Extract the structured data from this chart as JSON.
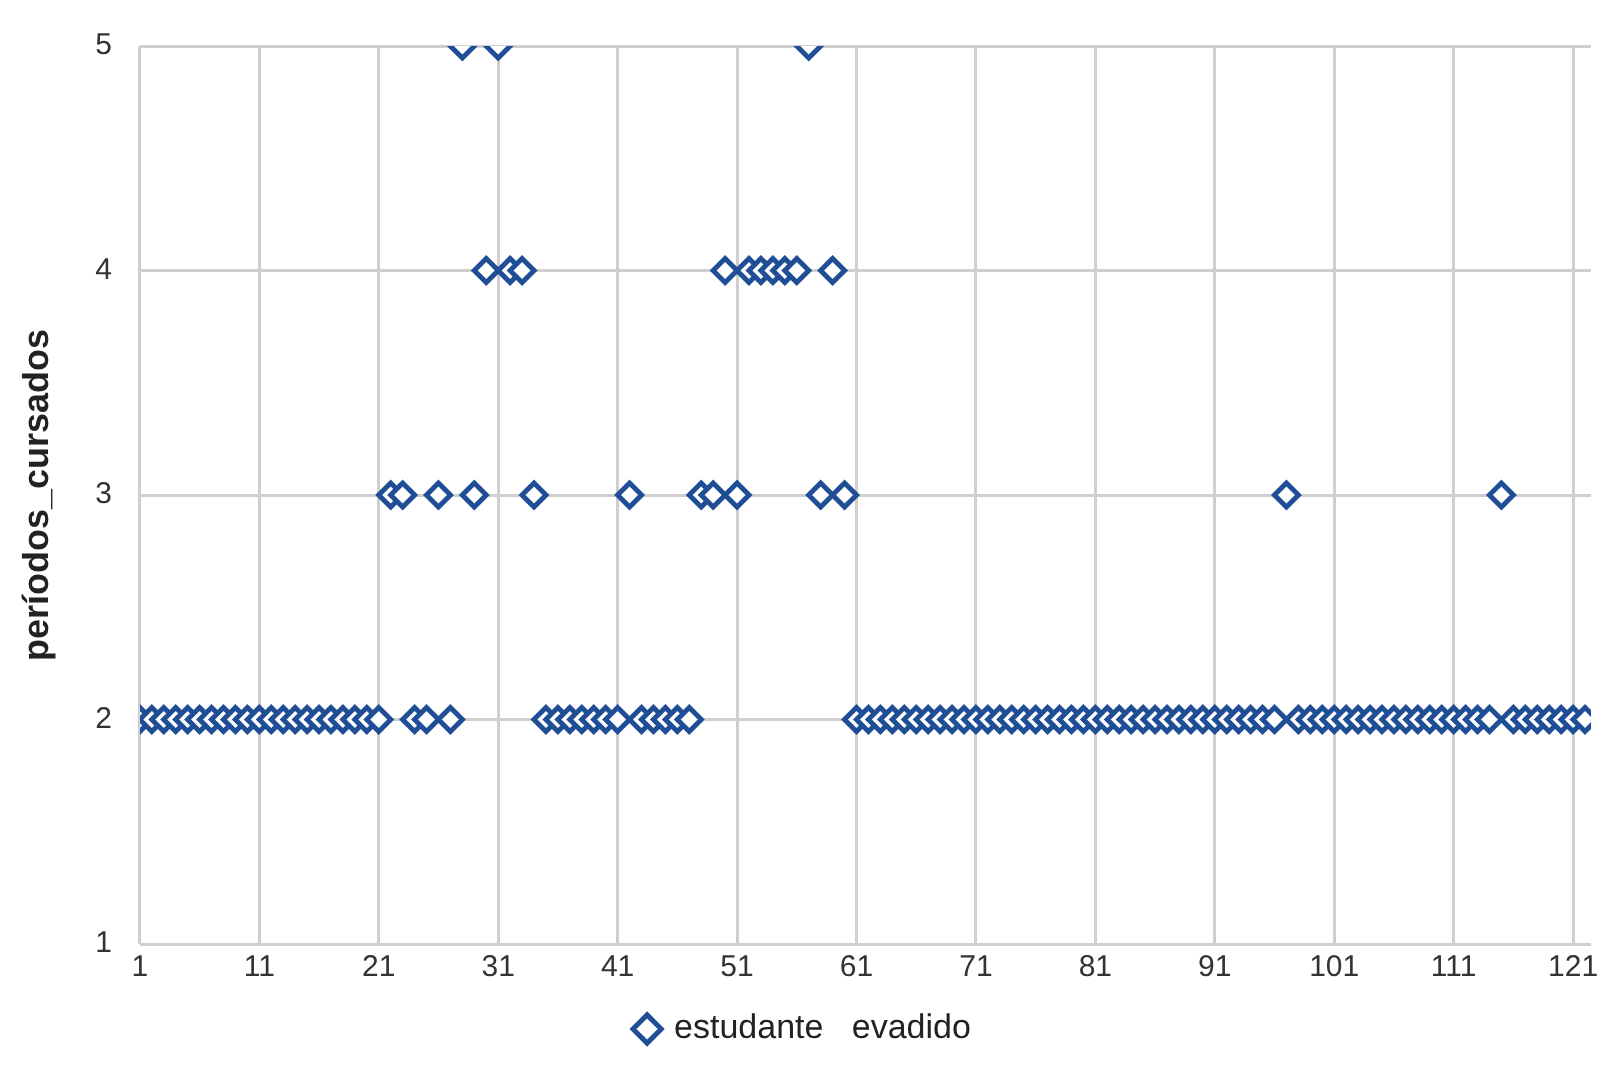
{
  "chart_data": {
    "type": "scatter",
    "ylabel": "períodos_cursados",
    "x": [
      1,
      2,
      3,
      4,
      5,
      6,
      7,
      8,
      9,
      10,
      11,
      12,
      13,
      14,
      15,
      16,
      17,
      18,
      19,
      20,
      21,
      22,
      23,
      24,
      25,
      26,
      27,
      28,
      29,
      30,
      31,
      32,
      33,
      34,
      35,
      36,
      37,
      38,
      39,
      40,
      41,
      42,
      43,
      44,
      45,
      46,
      47,
      48,
      49,
      50,
      51,
      52,
      53,
      54,
      55,
      56,
      57,
      58,
      59,
      60,
      61,
      62,
      63,
      64,
      65,
      66,
      67,
      68,
      69,
      70,
      71,
      72,
      73,
      74,
      75,
      76,
      77,
      78,
      79,
      80,
      81,
      82,
      83,
      84,
      85,
      86,
      87,
      88,
      89,
      90,
      91,
      92,
      93,
      94,
      95,
      96,
      97,
      98,
      99,
      100,
      101,
      102,
      103,
      104,
      105,
      106,
      107,
      108,
      109,
      110,
      111,
      112,
      113,
      114,
      115,
      116,
      117,
      118,
      119,
      120,
      121,
      122
    ],
    "series": [
      {
        "name": "estudante   evadido",
        "color": "#1f4e96",
        "values": [
          2,
          2,
          2,
          2,
          2,
          2,
          2,
          2,
          2,
          2,
          2,
          2,
          2,
          2,
          2,
          2,
          2,
          2,
          2,
          2,
          2,
          3,
          3,
          2,
          2,
          3,
          2,
          5,
          3,
          4,
          5,
          4,
          4,
          3,
          2,
          2,
          2,
          2,
          2,
          2,
          2,
          3,
          2,
          2,
          2,
          2,
          2,
          3,
          3,
          4,
          3,
          4,
          4,
          4,
          4,
          4,
          5,
          3,
          4,
          3,
          2,
          2,
          2,
          2,
          2,
          2,
          2,
          2,
          2,
          2,
          2,
          2,
          2,
          2,
          2,
          2,
          2,
          2,
          2,
          2,
          2,
          2,
          2,
          2,
          2,
          2,
          2,
          2,
          2,
          2,
          2,
          2,
          2,
          2,
          2,
          2,
          3,
          2,
          2,
          2,
          2,
          2,
          2,
          2,
          2,
          2,
          2,
          2,
          2,
          2,
          2,
          2,
          2,
          2,
          3,
          2,
          2,
          2,
          2,
          2,
          2,
          2
        ]
      }
    ],
    "xlim": [
      1,
      122.5
    ],
    "xticks": [
      1,
      11,
      21,
      31,
      41,
      51,
      61,
      71,
      81,
      91,
      101,
      111,
      121
    ],
    "ylim": [
      1,
      5
    ],
    "yticks": [
      1,
      2,
      3,
      4,
      5
    ],
    "grid": true,
    "legend": "bottom",
    "marker": "diamond"
  }
}
